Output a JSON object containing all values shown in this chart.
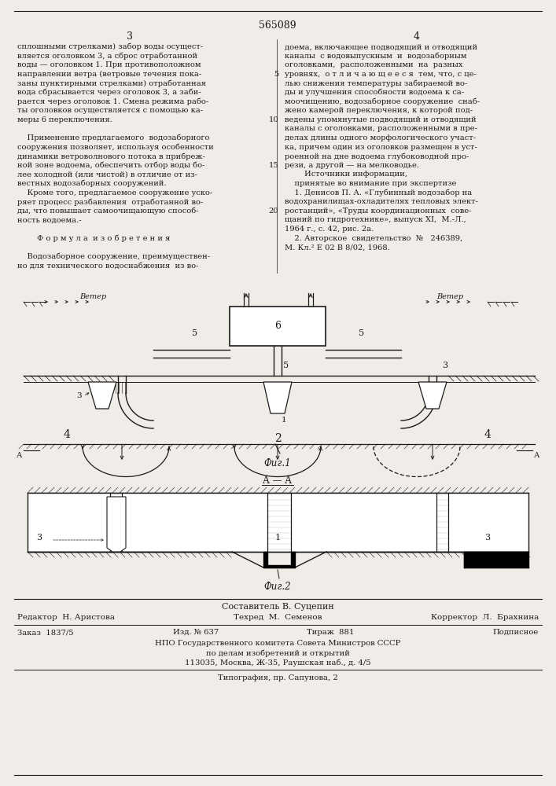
{
  "patent_number": "565089",
  "col_left": "3",
  "col_right": "4",
  "bg_color": "#f0ede8",
  "text_color": "#1a1a1a",
  "left_col_text": [
    "сплошными стрелками) забор воды осущест-",
    "вляется оголовком 3, а сброс отработанной",
    "воды — оголовком 1. При противоположном",
    "направлении ветра (ветровые течения пока-",
    "заны пунктирными стрелками) отработанная",
    "вода сбрасывается через оголовок 3, а заби-",
    "рается через оголовок 1. Смена режима рабо-",
    "ты оголовков осуществляется с помощью ка-",
    "меры 6 переключения.",
    "",
    "    Применение предлагаемого  водозаборного",
    "сооружения позволяет, используя особенности",
    "динамики ветроволнового потока в прибреж-",
    "ной зоне водоема, обеспечить отбор воды бо-",
    "лее холодной (или чистой) в отличие от из-",
    "вестных водозаборных сооружений.",
    "    Кроме того, предлагаемое сооружение уско-",
    "ряет процесс разбавления  отработанной во-",
    "ды, что повышает самоочищающую способ-",
    "ность водоема.-",
    "",
    "        Ф о р м у л а  и з о б р е т е н и я",
    "",
    "    Водозаборное сооружение, преимуществен-",
    "но для технического водоснабжения  из во-"
  ],
  "right_col_text": [
    "доема, включающее подводящий и отводящий",
    "каналы  с водовыпускным  и  водозаборным",
    "оголовками,  расположенными  на  разных",
    "уровнях,  о т л и ч а ю щ е е с я  тем, что, с це-",
    "лью снижения температуры забираемой во-",
    "ды и улучшения способности водоема к са-",
    "моочищению, водозаборное сооружение  снаб-",
    "жено камерой переключения, к которой под-",
    "ведены упомянутые подводящий и отводящий",
    "каналы с оголовками, расположенными в пре-",
    "делах длины одного морфологического участ-",
    "ка, причем один из оголовков размещен в уст-",
    "роенной на дне водоема глубоководной про-",
    "рези, а другой — на мелководье.",
    "        Источники информации,",
    "    принятые во внимание при экспертизе",
    "    1. Денисов П. А. «Глубинный водозабор на",
    "водохранилищах-охладителях тепловых элект-",
    "ростанций», «Труды координационных  сове-",
    "щаний по гидротехнике», выпуск XI,  М.-Л.,",
    "1964 г., с. 42, рис. 2а.",
    "    2. Авторское  свидетельство  №   246389,",
    "М. Кл.² Е 02 В 8/02, 1968."
  ],
  "line_numbers": [
    [
      3,
      "5"
    ],
    [
      8,
      "10"
    ],
    [
      13,
      "15"
    ],
    [
      18,
      "20"
    ]
  ],
  "fig1_label": "Фиг.1",
  "fig2_label": "Фиг.2",
  "section_label": "А — А",
  "bottom_author": "Составитель В. Суцепин",
  "bottom_editor": "Редактор  Н. Аристова",
  "bottom_techred": "Техред  М.  Семенов",
  "bottom_corrector": "Корректор  Л.  Брахнина",
  "bottom_order": "Заказ  1837/5",
  "bottom_izd": "Изд. № 637",
  "bottom_tirazh": "Тираж  881",
  "bottom_podpisnoe": "Подписное",
  "bottom_npo": "НПО Государственного комитета Совета Министров СССР",
  "bottom_npo2": "по делам изобретений и открытий",
  "bottom_addr": "113035, Москва, Ж-35, Раушская наб., д. 4/5",
  "bottom_typography": "Типография, пр. Сапунова, 2"
}
